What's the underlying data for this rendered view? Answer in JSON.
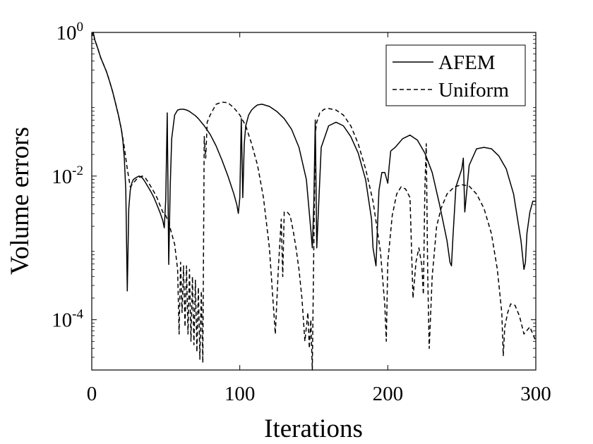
{
  "chart_data": {
    "type": "line",
    "xlabel": "Iterations",
    "ylabel": "Volume errors",
    "xlim": [
      0,
      300
    ],
    "ylim_log10": [
      -4.7,
      0
    ],
    "y_scale": "log",
    "x_ticks": [
      0,
      100,
      200,
      300
    ],
    "x_tick_labels": [
      "0",
      "100",
      "200",
      "300"
    ],
    "y_ticks_log10": [
      0,
      -2,
      -4
    ],
    "y_tick_labels": [
      {
        "base": "10",
        "exp": "0"
      },
      {
        "base": "10",
        "exp": "-2"
      },
      {
        "base": "10",
        "exp": "-4"
      }
    ],
    "legend": {
      "position": "top-right"
    },
    "series": [
      {
        "name": "AFEM",
        "style": "solid",
        "color": "#000000",
        "x": [
          0,
          1,
          2,
          4,
          6,
          8,
          10,
          12,
          14,
          16,
          18,
          20,
          21,
          22,
          23,
          24,
          25,
          26,
          27,
          28,
          30,
          32,
          34,
          36,
          38,
          40,
          42,
          44,
          46,
          48,
          49,
          50,
          51,
          52,
          53,
          54,
          56,
          58,
          60,
          62,
          64,
          66,
          68,
          70,
          72,
          76,
          80,
          84,
          88,
          92,
          96,
          98,
          99,
          100,
          101,
          102,
          103,
          104,
          106,
          108,
          110,
          112,
          115,
          120,
          125,
          130,
          135,
          140,
          145,
          148,
          149,
          150,
          151,
          152,
          155,
          160,
          165,
          170,
          175,
          180,
          185,
          189,
          190,
          192,
          193,
          194,
          196,
          198,
          200,
          201,
          202,
          205,
          210,
          215,
          220,
          225,
          230,
          235,
          240,
          242,
          243,
          244,
          246,
          250,
          251,
          252,
          255,
          260,
          265,
          270,
          275,
          280,
          285,
          290,
          292,
          293,
          294,
          296,
          298,
          300
        ],
        "y_log10": [
          -0.05,
          0,
          -0.1,
          -0.22,
          -0.35,
          -0.45,
          -0.55,
          -0.68,
          -0.82,
          -0.98,
          -1.15,
          -1.35,
          -1.5,
          -1.75,
          -2.2,
          -3.6,
          -2.45,
          -2.2,
          -2.1,
          -2.05,
          -2.02,
          -2.0,
          -2.02,
          -2.08,
          -2.15,
          -2.22,
          -2.3,
          -2.4,
          -2.5,
          -2.62,
          -2.72,
          -2.32,
          -1.12,
          -3.23,
          -2.15,
          -1.48,
          -1.15,
          -1.08,
          -1.07,
          -1.07,
          -1.08,
          -1.1,
          -1.13,
          -1.16,
          -1.2,
          -1.3,
          -1.42,
          -1.58,
          -1.78,
          -2.0,
          -2.25,
          -2.4,
          -2.52,
          -2.3,
          -1.2,
          -2.3,
          -1.55,
          -1.3,
          -1.15,
          -1.08,
          -1.04,
          -1.01,
          -1.0,
          -1.03,
          -1.1,
          -1.2,
          -1.35,
          -1.6,
          -2.05,
          -2.75,
          -3.0,
          -2.4,
          -1.22,
          -3.0,
          -1.6,
          -1.3,
          -1.25,
          -1.3,
          -1.45,
          -1.68,
          -2.05,
          -2.6,
          -3.0,
          -3.25,
          -2.7,
          -2.2,
          -1.95,
          -1.95,
          -2.1,
          -1.85,
          -1.65,
          -1.6,
          -1.48,
          -1.43,
          -1.5,
          -1.68,
          -1.95,
          -2.4,
          -2.9,
          -3.2,
          -3.25,
          -2.85,
          -2.15,
          -1.9,
          -1.75,
          -2.5,
          -1.85,
          -1.62,
          -1.6,
          -1.62,
          -1.72,
          -1.9,
          -2.25,
          -2.9,
          -3.3,
          -3.2,
          -2.8,
          -2.5,
          -2.35,
          -2.35
        ]
      },
      {
        "name": "Uniform",
        "style": "dashed",
        "color": "#000000",
        "x": [
          0,
          1,
          2,
          4,
          6,
          8,
          10,
          12,
          14,
          16,
          18,
          20,
          22,
          24,
          26,
          28,
          30,
          32,
          34,
          36,
          38,
          40,
          42,
          44,
          46,
          48,
          50,
          52,
          54,
          56,
          58,
          59,
          60,
          61,
          62,
          63,
          64,
          65,
          66,
          67,
          68,
          69,
          70,
          71,
          72,
          73,
          74,
          75,
          76,
          77,
          78,
          80,
          84,
          88,
          92,
          96,
          100,
          104,
          108,
          112,
          116,
          120,
          122,
          124,
          126,
          128,
          129,
          130,
          132,
          134,
          136,
          138,
          140,
          142,
          144,
          146,
          147,
          148,
          149,
          150,
          151,
          152,
          154,
          157,
          160,
          165,
          170,
          175,
          180,
          185,
          190,
          195,
          198,
          199,
          200,
          203,
          206,
          209,
          212,
          215,
          217,
          219,
          221,
          223,
          224,
          225,
          226,
          227,
          228,
          230,
          233,
          236,
          240,
          245,
          250,
          255,
          260,
          265,
          270,
          274,
          277,
          278,
          279,
          281,
          283,
          286,
          289,
          292,
          296,
          300
        ],
        "y_log10": [
          -0.05,
          0,
          -0.1,
          -0.22,
          -0.35,
          -0.45,
          -0.55,
          -0.68,
          -0.82,
          -0.98,
          -1.15,
          -1.35,
          -1.6,
          -1.9,
          -2.15,
          -2.1,
          -2.05,
          -2.02,
          -2.0,
          -2.02,
          -2.08,
          -2.15,
          -2.22,
          -2.3,
          -2.4,
          -2.5,
          -2.55,
          -2.65,
          -2.8,
          -2.95,
          -3.3,
          -4.2,
          -3.2,
          -3.9,
          -3.25,
          -4.1,
          -3.25,
          -4.2,
          -3.3,
          -4.3,
          -3.4,
          -4.35,
          -3.45,
          -4.45,
          -3.55,
          -4.55,
          -3.6,
          -4.6,
          -1.45,
          -1.75,
          -1.25,
          -1.15,
          -1.0,
          -0.97,
          -0.98,
          -1.05,
          -1.15,
          -1.3,
          -1.55,
          -1.85,
          -2.3,
          -3.0,
          -3.6,
          -4.2,
          -3.3,
          -2.6,
          -3.4,
          -2.5,
          -2.5,
          -2.55,
          -2.75,
          -3.0,
          -3.3,
          -3.7,
          -4.3,
          -3.9,
          -4.4,
          -4.0,
          -4.7,
          -3.0,
          -1.4,
          -1.25,
          -1.12,
          -1.07,
          -1.06,
          -1.08,
          -1.15,
          -1.3,
          -1.55,
          -1.9,
          -2.35,
          -3.05,
          -3.8,
          -4.3,
          -3.2,
          -2.55,
          -2.25,
          -2.15,
          -2.18,
          -2.3,
          -3.7,
          -3.2,
          -3.0,
          -3.25,
          -3.65,
          -2.2,
          -1.55,
          -3.4,
          -4.4,
          -3.4,
          -2.7,
          -2.45,
          -2.25,
          -2.15,
          -2.12,
          -2.14,
          -2.25,
          -2.45,
          -2.8,
          -3.3,
          -3.9,
          -4.5,
          -4.1,
          -3.9,
          -3.78,
          -3.8,
          -3.95,
          -4.2,
          -4.1,
          -4.3
        ]
      }
    ]
  }
}
